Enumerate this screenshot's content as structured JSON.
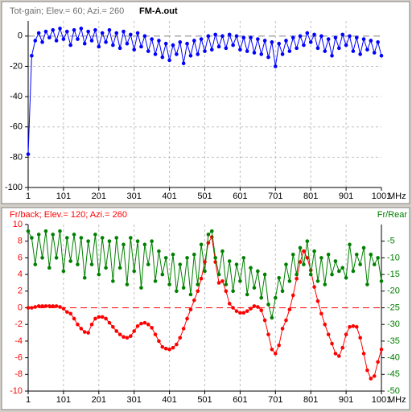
{
  "chart_data": [
    {
      "type": "line",
      "title": "Tot-gain; Elev.= 60; Azi.= 260",
      "file_label": "FM-A.out",
      "xlabel": "MHz",
      "xlim": [
        1,
        1001
      ],
      "xticks": [
        1,
        101,
        201,
        301,
        401,
        501,
        601,
        701,
        801,
        901,
        1001
      ],
      "ylim": [
        -100,
        10
      ],
      "yticks": [
        0,
        -20,
        -40,
        -60,
        -80,
        -100
      ],
      "grid": true,
      "x": [
        1,
        11,
        21,
        31,
        41,
        51,
        61,
        71,
        81,
        91,
        101,
        111,
        121,
        131,
        141,
        151,
        161,
        171,
        181,
        191,
        201,
        211,
        221,
        231,
        241,
        251,
        261,
        271,
        281,
        291,
        301,
        311,
        321,
        331,
        341,
        351,
        361,
        371,
        381,
        391,
        401,
        411,
        421,
        431,
        441,
        451,
        461,
        471,
        481,
        491,
        501,
        511,
        521,
        531,
        541,
        551,
        561,
        571,
        581,
        591,
        601,
        611,
        621,
        631,
        641,
        651,
        661,
        671,
        681,
        691,
        701,
        711,
        721,
        731,
        741,
        751,
        761,
        771,
        781,
        791,
        801,
        811,
        821,
        831,
        841,
        851,
        861,
        871,
        881,
        891,
        901,
        911,
        921,
        931,
        941,
        951,
        961,
        971,
        981,
        991,
        1001
      ],
      "series": [
        {
          "color": "#0000ff",
          "values": [
            -78,
            -13,
            -3,
            2,
            -4,
            3,
            -1,
            4,
            -3,
            5,
            -2,
            3,
            -6,
            4,
            -2,
            5,
            -5,
            3,
            -3,
            4,
            -7,
            2,
            -4,
            4,
            -6,
            2,
            -8,
            3,
            -5,
            1,
            -9,
            2,
            -7,
            0,
            -10,
            -2,
            -12,
            -3,
            -14,
            -5,
            -16,
            -6,
            -12,
            -4,
            -18,
            -5,
            -13,
            -3,
            -12,
            -2,
            -10,
            0,
            -9,
            1,
            -7,
            0,
            -8,
            1,
            -6,
            0,
            -9,
            -1,
            -10,
            -1,
            -11,
            -2,
            -12,
            -3,
            -14,
            -4,
            -20,
            -5,
            -12,
            -3,
            -10,
            -1,
            -8,
            0,
            -6,
            2,
            -4,
            1,
            -8,
            0,
            -10,
            -2,
            -13,
            -1,
            -8,
            1,
            -6,
            0,
            -10,
            -1,
            -12,
            -2,
            -9,
            -3,
            -11,
            -4,
            -13
          ]
        }
      ]
    },
    {
      "type": "line",
      "title": "Fr/back; Elev.= 120; Azi.= 260",
      "y2label": "Fr/Rear",
      "xlabel": "MHz",
      "xlim": [
        1,
        1001
      ],
      "xticks": [
        1,
        101,
        201,
        301,
        401,
        501,
        601,
        701,
        801,
        901,
        1001
      ],
      "ylim": [
        -10,
        10
      ],
      "yticks": [
        10,
        8,
        6,
        4,
        2,
        0,
        -2,
        -4,
        -6,
        -8,
        -10
      ],
      "y2lim": [
        -50,
        0
      ],
      "y2ticks": [
        -5,
        -10,
        -15,
        -20,
        -25,
        -30,
        -35,
        -40,
        -45,
        -50
      ],
      "grid": true,
      "x": [
        1,
        11,
        21,
        31,
        41,
        51,
        61,
        71,
        81,
        91,
        101,
        111,
        121,
        131,
        141,
        151,
        161,
        171,
        181,
        191,
        201,
        211,
        221,
        231,
        241,
        251,
        261,
        271,
        281,
        291,
        301,
        311,
        321,
        331,
        341,
        351,
        361,
        371,
        381,
        391,
        401,
        411,
        421,
        431,
        441,
        451,
        461,
        471,
        481,
        491,
        501,
        511,
        521,
        531,
        541,
        551,
        561,
        571,
        581,
        591,
        601,
        611,
        621,
        631,
        641,
        651,
        661,
        671,
        681,
        691,
        701,
        711,
        721,
        731,
        741,
        751,
        761,
        771,
        781,
        791,
        801,
        811,
        821,
        831,
        841,
        851,
        861,
        871,
        881,
        891,
        901,
        911,
        921,
        931,
        941,
        951,
        961,
        971,
        981,
        991,
        1001
      ],
      "series": [
        {
          "color": "#ff0000",
          "values": [
            0,
            0,
            0.1,
            0.2,
            0.2,
            0.2,
            0.2,
            0.2,
            0.2,
            0.1,
            -0.1,
            -0.5,
            -0.7,
            -1.3,
            -2,
            -2.5,
            -2.9,
            -3,
            -2,
            -1.3,
            -1.1,
            -1.1,
            -1.3,
            -1.8,
            -2.3,
            -2.8,
            -3.2,
            -3.5,
            -3.6,
            -3.4,
            -2.8,
            -2.2,
            -1.9,
            -1.8,
            -2,
            -2.4,
            -3.2,
            -4,
            -4.7,
            -4.9,
            -5,
            -4.8,
            -4.4,
            -3.6,
            -2.5,
            -1.3,
            -0.2,
            0.9,
            2,
            3.5,
            5.5,
            7.8,
            8.5,
            5.5,
            3,
            3.2,
            2,
            0.5,
            0,
            -0.4,
            -0.6,
            -0.6,
            -0.4,
            -0.1,
            0.2,
            0.1,
            -0.3,
            -1.5,
            -3.2,
            -5,
            -5.5,
            -4.5,
            -2.5,
            -1.5,
            -0.2,
            1.5,
            3.5,
            5.5,
            6.8,
            6,
            4.5,
            2.5,
            0.8,
            -0.7,
            -2,
            -3.2,
            -4.3,
            -5.5,
            -5.8,
            -4.8,
            -3.2,
            -2.3,
            -2.2,
            -2.3,
            -3.6,
            -5.5,
            -7.5,
            -8.5,
            -8.2,
            -6.5,
            -5
          ]
        },
        {
          "color": "#008000",
          "axis": "y2",
          "values": [
            -2,
            -4,
            -12,
            -3,
            -10,
            -2,
            -13,
            -3,
            -10,
            -2,
            -14,
            -4,
            -11,
            -3,
            -12,
            -4,
            -16,
            -5,
            -12,
            -3,
            -15,
            -4,
            -13,
            -5,
            -17,
            -4,
            -13,
            -6,
            -18,
            -4,
            -14,
            -5,
            -19,
            -6,
            -12,
            -5,
            -17,
            -8,
            -15,
            -10,
            -18,
            -9,
            -20,
            -12,
            -19,
            -10,
            -21,
            -9,
            -18,
            -6,
            -14,
            -3,
            -2,
            -10,
            -15,
            -8,
            -18,
            -11,
            -20,
            -12,
            -17,
            -10,
            -21,
            -13,
            -19,
            -14,
            -22,
            -15,
            -24,
            -28,
            -22,
            -16,
            -20,
            -12,
            -17,
            -9,
            -15,
            -7,
            -12,
            -5,
            -15,
            -8,
            -17,
            -10,
            -18,
            -9,
            -15,
            -11,
            -14,
            -13,
            -16,
            -6,
            -14,
            -9,
            -12,
            -7,
            -18,
            -9,
            -12,
            -10,
            -17
          ]
        }
      ]
    }
  ]
}
